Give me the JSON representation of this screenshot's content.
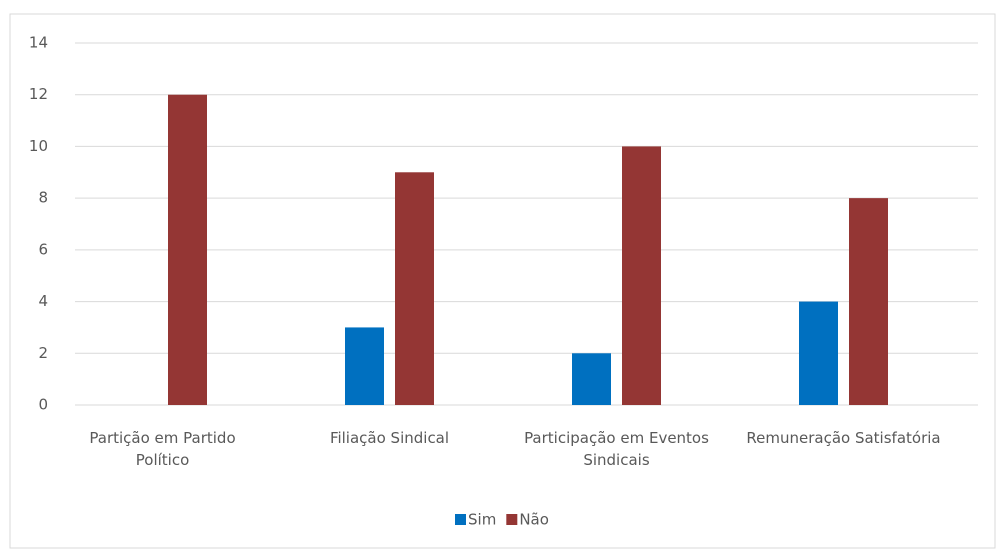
{
  "chart_data": {
    "type": "bar",
    "categories": [
      "Partição em Partido Político",
      "Filiação Sindical",
      "Participação em Eventos Sindicais",
      "Remuneração Satisfatória"
    ],
    "series": [
      {
        "name": "Sim",
        "color": "#0070c0",
        "values": [
          0,
          3,
          2,
          4
        ]
      },
      {
        "name": "Não",
        "color": "#943634",
        "values": [
          12,
          9,
          10,
          8
        ]
      }
    ],
    "ylim": [
      0,
      14
    ],
    "yticks": [
      0,
      2,
      4,
      6,
      8,
      10,
      12,
      14
    ],
    "grid": true,
    "legend": "bottom"
  }
}
